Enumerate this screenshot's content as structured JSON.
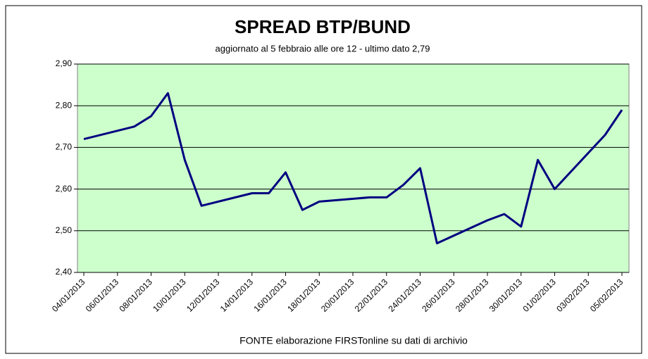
{
  "chart_data": {
    "type": "line",
    "title": "SPREAD  BTP/BUND",
    "subtitle": "aggiornato al 5 febbraio alle ore 12 - ultimo dato 2,79",
    "x_label": "FONTE elaborazione FIRSTonline su dati di archivio",
    "x": [
      "2013-01-04",
      "2013-01-07",
      "2013-01-08",
      "2013-01-09",
      "2013-01-10",
      "2013-01-11",
      "2013-01-14",
      "2013-01-15",
      "2013-01-16",
      "2013-01-17",
      "2013-01-18",
      "2013-01-21",
      "2013-01-22",
      "2013-01-23",
      "2013-01-24",
      "2013-01-25",
      "2013-01-28",
      "2013-01-29",
      "2013-01-30",
      "2013-01-31",
      "2013-02-01",
      "2013-02-04",
      "2013-02-05"
    ],
    "series": [
      {
        "name": "Spread",
        "color": "#000080",
        "values": [
          2.72,
          2.75,
          2.775,
          2.83,
          2.67,
          2.56,
          2.59,
          2.59,
          2.64,
          2.55,
          2.57,
          2.58,
          2.58,
          2.61,
          2.65,
          2.47,
          2.525,
          2.54,
          2.51,
          2.67,
          2.6,
          2.73,
          2.79
        ]
      }
    ],
    "xlim": [
      "2013-01-04",
      "2013-02-05"
    ],
    "xticks": [
      {
        "value": "2013-01-04",
        "label": "04/01/2013"
      },
      {
        "value": "2013-01-06",
        "label": "06/01/2013"
      },
      {
        "value": "2013-01-08",
        "label": "08/01/2013"
      },
      {
        "value": "2013-01-10",
        "label": "10/01/2013"
      },
      {
        "value": "2013-01-12",
        "label": "12/01/2013"
      },
      {
        "value": "2013-01-14",
        "label": "14/01/2013"
      },
      {
        "value": "2013-01-16",
        "label": "16/01/2013"
      },
      {
        "value": "2013-01-18",
        "label": "18/01/2013"
      },
      {
        "value": "2013-01-20",
        "label": "20/01/2013"
      },
      {
        "value": "2013-01-22",
        "label": "22/01/2013"
      },
      {
        "value": "2013-01-24",
        "label": "24/01/2013"
      },
      {
        "value": "2013-01-26",
        "label": "26/01/2013"
      },
      {
        "value": "2013-01-28",
        "label": "28/01/2013"
      },
      {
        "value": "2013-01-30",
        "label": "30/01/2013"
      },
      {
        "value": "2013-02-01",
        "label": "01/02/2013"
      },
      {
        "value": "2013-02-03",
        "label": "03/02/2013"
      },
      {
        "value": "2013-02-05",
        "label": "05/02/2013"
      }
    ],
    "ylim": [
      2.4,
      2.9
    ],
    "yticks": [
      {
        "value": 2.4,
        "label": "2,40"
      },
      {
        "value": 2.5,
        "label": "2,50"
      },
      {
        "value": 2.6,
        "label": "2,60"
      },
      {
        "value": 2.7,
        "label": "2,70"
      },
      {
        "value": 2.8,
        "label": "2,80"
      },
      {
        "value": 2.9,
        "label": "2,90"
      }
    ],
    "grid": true,
    "plot_color": "#ccffcc"
  }
}
